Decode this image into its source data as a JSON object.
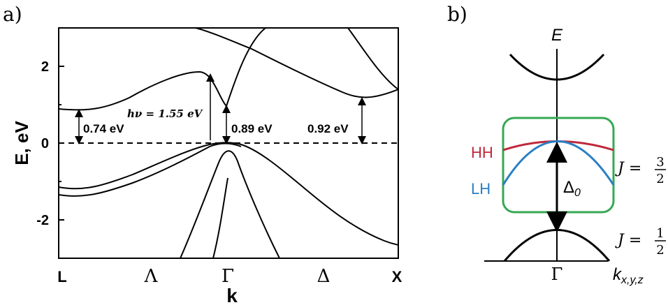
{
  "panel_a": {
    "label": "a)",
    "y_axis_label": "E, eV",
    "x_axis_label": "k",
    "y_ticks": [
      "2",
      "0",
      "-2"
    ],
    "x_ticks": [
      "L",
      "Λ",
      "Γ",
      "Δ",
      "X"
    ],
    "annotations": {
      "gap_L": "0.74 eV",
      "photon": "hν = 1.55 eV",
      "gap_gamma": "0.89 eV",
      "gap_X": "0.92 eV"
    }
  },
  "panel_b": {
    "label": "b)",
    "energy_axis": "E",
    "k_axis": "k",
    "k_axis_sub": "x,y,z",
    "gamma": "Γ",
    "hh": "HH",
    "lh": "LH",
    "delta": "Δ",
    "delta_sub": "0",
    "j_upper": "J = ",
    "j_upper_num": "3",
    "j_upper_den": "2",
    "j_lower": "J = ",
    "j_lower_num": "1",
    "j_lower_den": "2",
    "colors": {
      "hh": "#c0283a",
      "lh": "#2a7fc4",
      "box": "#35a853"
    }
  }
}
